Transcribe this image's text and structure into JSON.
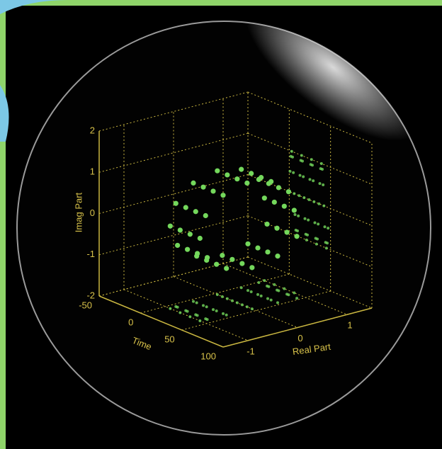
{
  "chart_data": {
    "type": "helix3d",
    "xlabel": "Time",
    "ylabel": "Real Part",
    "zlabel": "Imag Part",
    "x": [
      0,
      1,
      2,
      3,
      4,
      5,
      6,
      7,
      8,
      9,
      10,
      11,
      12,
      13,
      14,
      15,
      16,
      17,
      18,
      19,
      20,
      21,
      22,
      23,
      24,
      25,
      26,
      27,
      28,
      29,
      30,
      31,
      32,
      33,
      34,
      35,
      36,
      37,
      38,
      39,
      40,
      41,
      42,
      43,
      44,
      45,
      46,
      47
    ],
    "y": [
      1,
      0.87,
      0.5,
      0,
      -0.5,
      -0.87,
      -1,
      -0.87,
      -0.5,
      0,
      0.5,
      0.87,
      1,
      0.87,
      0.5,
      0,
      -0.5,
      -0.87,
      -1,
      -0.87,
      -0.5,
      0,
      0.5,
      0.87,
      1,
      0.87,
      0.5,
      0,
      -0.5,
      -0.87,
      -1,
      -0.87,
      -0.5,
      0,
      0.5,
      0.87,
      1,
      0.87,
      0.5,
      0,
      -0.5,
      -0.87,
      -1,
      -0.87,
      -0.5,
      0,
      0.5,
      0.87
    ],
    "z": [
      0,
      0.5,
      0.87,
      1,
      0.87,
      0.5,
      0,
      -0.5,
      -0.87,
      -1,
      -0.87,
      -0.5,
      0,
      0.5,
      0.87,
      1,
      0.87,
      0.5,
      0,
      -0.5,
      -0.87,
      -1,
      -0.87,
      -0.5,
      0,
      0.5,
      0.87,
      1,
      0.87,
      0.5,
      0,
      -0.5,
      -0.87,
      -1,
      -0.87,
      -0.5,
      0,
      0.5,
      0.87,
      1,
      0.87,
      0.5,
      0,
      -0.5,
      -0.87,
      -1,
      -0.87,
      -0.5
    ],
    "xlim": [
      -50,
      100
    ],
    "xticks": [
      -50,
      0,
      50,
      100
    ],
    "ylim": [
      -1.5,
      1.5
    ],
    "yticks": [
      -1,
      0,
      1
    ],
    "zlim": [
      -2,
      2
    ],
    "zticks": [
      -2,
      -1,
      0,
      1,
      2
    ],
    "color": "#74d85c",
    "grid_color": "#c9b640",
    "grid": true
  }
}
